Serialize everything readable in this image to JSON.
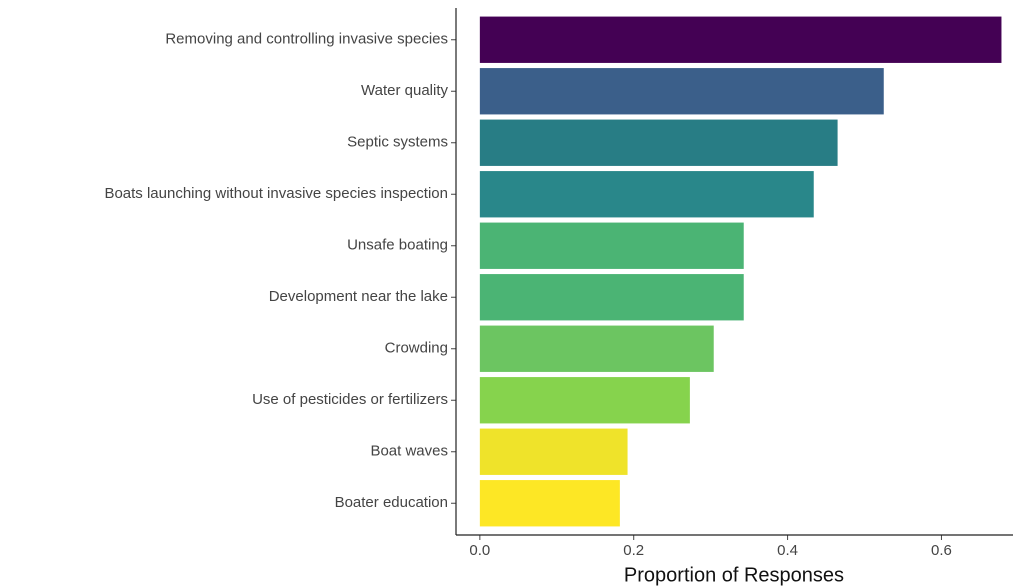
{
  "chart_data": {
    "type": "bar",
    "orientation": "horizontal",
    "x_label": "Proportion of Responses",
    "categories": [
      "Removing and controlling invasive species",
      "Water quality",
      "Septic systems",
      "Boats launching without invasive species inspection",
      "Unsafe boating",
      "Development near the lake",
      "Crowding",
      "Use of pesticides or fertilizers",
      "Boat waves",
      "Boater education"
    ],
    "values": [
      0.678,
      0.525,
      0.465,
      0.434,
      0.343,
      0.343,
      0.304,
      0.273,
      0.192,
      0.182
    ],
    "colors": [
      "#440154",
      "#3b5f8a",
      "#287d85",
      "#29878a",
      "#4bb474",
      "#4bb474",
      "#6cc561",
      "#86d34d",
      "#efe32a",
      "#fde725"
    ],
    "xlim": [
      -0.031,
      0.693
    ],
    "xticks": [
      {
        "value": 0,
        "label": "0.0"
      },
      0.2,
      0.4,
      0.6
    ],
    "grid": false
  }
}
